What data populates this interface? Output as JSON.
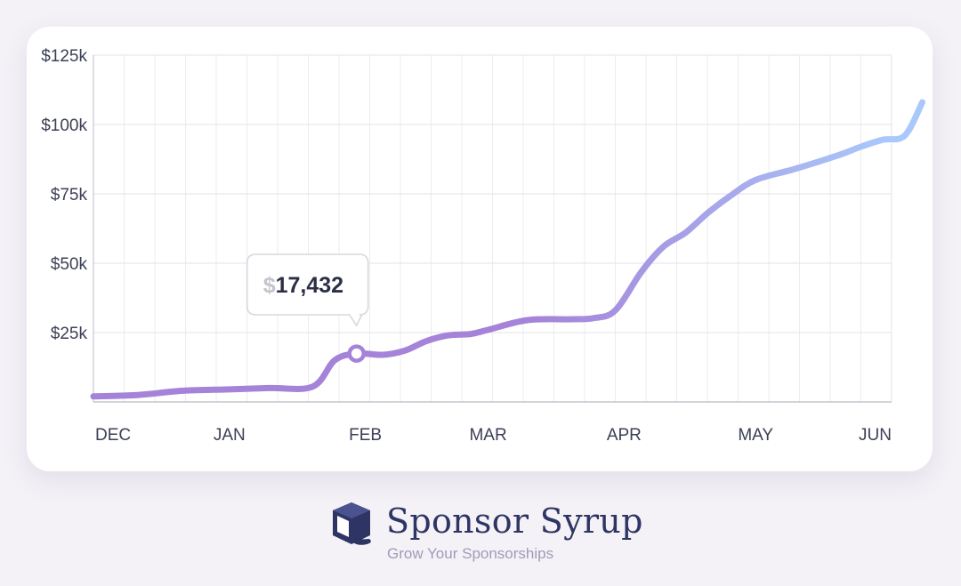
{
  "chart_data": {
    "type": "line",
    "x": [
      "2018-12-01",
      "2018-12-11",
      "2018-12-21",
      "2018-12-31",
      "2019-01-10",
      "2019-01-20",
      "2019-01-25",
      "2019-01-30",
      "2019-02-05",
      "2019-02-10",
      "2019-02-15",
      "2019-02-20",
      "2019-02-25",
      "2019-03-01",
      "2019-03-10",
      "2019-03-20",
      "2019-03-25",
      "2019-03-30",
      "2019-04-05",
      "2019-04-10",
      "2019-04-15",
      "2019-04-20",
      "2019-04-25",
      "2019-05-01",
      "2019-05-10",
      "2019-05-20",
      "2019-05-25",
      "2019-05-30",
      "2019-06-04",
      "2019-06-08"
    ],
    "y": [
      2000,
      2500,
      4000,
      4500,
      5000,
      5500,
      15000,
      17432,
      17000,
      18500,
      22000,
      24000,
      24500,
      26000,
      29500,
      29800,
      30200,
      33000,
      47000,
      56000,
      61000,
      68000,
      74000,
      80000,
      84000,
      89000,
      92000,
      94500,
      96000,
      108000
    ],
    "xlabel": "",
    "ylabel": "",
    "ylim": [
      0,
      125000
    ],
    "y_ticks": [
      {
        "value": 25000,
        "label": "$25k"
      },
      {
        "value": 50000,
        "label": "$50k"
      },
      {
        "value": 75000,
        "label": "$75k"
      },
      {
        "value": 100000,
        "label": "$100k"
      },
      {
        "value": 125000,
        "label": "$125k"
      }
    ],
    "x_ticks": [
      {
        "date": "2018-12-01",
        "label": "DEC"
      },
      {
        "date": "2019-01-01",
        "label": "JAN"
      },
      {
        "date": "2019-02-01",
        "label": "FEB"
      },
      {
        "date": "2019-03-01",
        "label": "MAR"
      },
      {
        "date": "2019-04-01",
        "label": "APR"
      },
      {
        "date": "2019-05-01",
        "label": "MAY"
      },
      {
        "date": "2019-06-01",
        "label": "JUN"
      }
    ],
    "grid": true,
    "line_gradient": [
      "#a583d8",
      "#a9c9fb"
    ],
    "highlight": {
      "date": "2019-01-30",
      "value": 17432,
      "currency_symbol": "$",
      "amount_text": "17,432"
    }
  },
  "brand": {
    "name": "Sponsor Syrup",
    "tagline": "Grow Your Sponsorships",
    "icon": "syrup-box-icon",
    "color": "#2e3564"
  }
}
